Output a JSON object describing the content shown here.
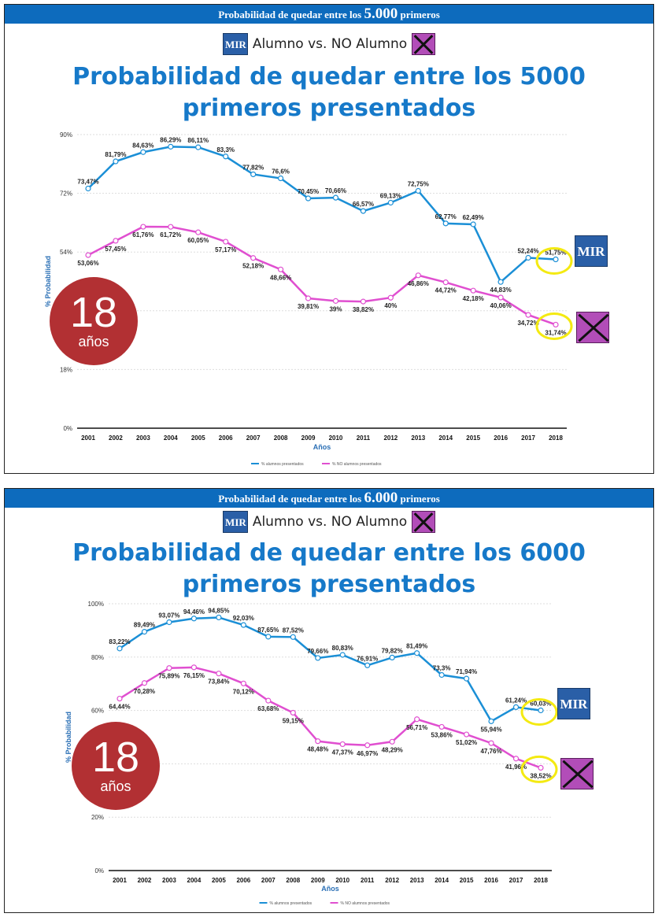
{
  "colors": {
    "banner": "#0d6bbd",
    "series_alumnos": "#1b8fd6",
    "series_no_alumnos": "#e04fd0",
    "title_blue": "#1679c9",
    "age_badge": "#b23033",
    "highlight": "#f4ea12"
  },
  "panels": [
    {
      "banner_prefix": "Probabilidad de quedar entre los",
      "banner_number": "5.000",
      "banner_suffix": "primeros",
      "subtitle": "Alumno vs. NO Alumno",
      "logo_text": "MIR",
      "title_line1": "Probabilidad de quedar entre los 5000",
      "title_line2": "primeros presentados",
      "age_number": "18",
      "age_unit": "años",
      "chart_data": {
        "type": "line",
        "categories": [
          "2001",
          "2002",
          "2003",
          "2004",
          "2005",
          "2006",
          "2007",
          "2008",
          "2009",
          "2010",
          "2011",
          "2012",
          "2013",
          "2014",
          "2015",
          "2016",
          "2017",
          "2018"
        ],
        "series": [
          {
            "name": "% alumnos presentados",
            "values": [
              73.47,
              81.79,
              84.63,
              86.29,
              86.11,
              83.3,
              77.82,
              76.6,
              70.45,
              70.66,
              66.57,
              69.13,
              72.75,
              62.77,
              62.49,
              44.83,
              52.24,
              51.75
            ],
            "labels": [
              "73,47%",
              "81,79%",
              "84,63%",
              "86,29%",
              "86,11%",
              "83,3%",
              "77,82%",
              "76,6%",
              "70,45%",
              "70,66%",
              "66,57%",
              "69,13%",
              "72,75%",
              "62,77%",
              "62,49%",
              "44,83%",
              "52,24%",
              "51,75%"
            ]
          },
          {
            "name": "% NO alumnos presentados",
            "values": [
              53.06,
              57.45,
              61.76,
              61.72,
              60.05,
              57.17,
              52.18,
              48.66,
              39.81,
              39,
              38.82,
              40,
              46.86,
              44.72,
              42.18,
              40.06,
              34.72,
              31.74
            ],
            "labels": [
              "53,06%",
              "57,45%",
              "61,76%",
              "61,72%",
              "60,05%",
              "57,17%",
              "52,18%",
              "48,66%",
              "39,81%",
              "39%",
              "38,82%",
              "40%",
              "46,86%",
              "44,72%",
              "42,18%",
              "40,06%",
              "34,72%",
              "31,74%"
            ]
          }
        ],
        "xlabel": "Años",
        "ylabel": "% Probabilidad",
        "ylim": [
          0,
          90
        ],
        "yticks": [
          "0%",
          "18%",
          "36%",
          "54%",
          "72%",
          "90%"
        ],
        "ytick_values": [
          0,
          18,
          36,
          54,
          72,
          90
        ],
        "grid": true,
        "legend": "bottom"
      }
    },
    {
      "banner_prefix": "Probabilidad de quedar entre los",
      "banner_number": "6.000",
      "banner_suffix": "primeros",
      "subtitle": "Alumno vs. NO Alumno",
      "logo_text": "MIR",
      "title_line1": "Probabilidad de quedar entre los 6000",
      "title_line2": "primeros presentados",
      "age_number": "18",
      "age_unit": "años",
      "chart_data": {
        "type": "line",
        "categories": [
          "2001",
          "2002",
          "2003",
          "2004",
          "2005",
          "2006",
          "2007",
          "2008",
          "2009",
          "2010",
          "2011",
          "2012",
          "2013",
          "2014",
          "2015",
          "2016",
          "2017",
          "2018"
        ],
        "series": [
          {
            "name": "% alumnos presentados",
            "values": [
              83.22,
              89.49,
              93.07,
              94.46,
              94.85,
              92.03,
              87.65,
              87.52,
              79.66,
              80.83,
              76.91,
              79.82,
              81.49,
              73.3,
              71.94,
              55.94,
              61.24,
              60.03
            ],
            "labels": [
              "83,22%",
              "89,49%",
              "93,07%",
              "94,46%",
              "94,85%",
              "92,03%",
              "87,65%",
              "87,52%",
              "79,66%",
              "80,83%",
              "76,91%",
              "79,82%",
              "81,49%",
              "73,3%",
              "71,94%",
              "55,94%",
              "61,24%",
              "60,03%"
            ]
          },
          {
            "name": "% NO alumnos presentados",
            "values": [
              64.44,
              70.28,
              75.89,
              76.15,
              73.84,
              70.12,
              63.68,
              59.15,
              48.48,
              47.37,
              46.97,
              48.29,
              56.71,
              53.86,
              51.02,
              47.76,
              41.96,
              38.52
            ],
            "labels": [
              "64,44%",
              "70,28%",
              "75,89%",
              "76,15%",
              "73,84%",
              "70,12%",
              "63,68%",
              "59,15%",
              "48,48%",
              "47,37%",
              "46,97%",
              "48,29%",
              "56,71%",
              "53,86%",
              "51,02%",
              "47,76%",
              "41,96%",
              "38,52%"
            ]
          }
        ],
        "xlabel": "Años",
        "ylabel": "% Probabilidad",
        "ylim": [
          0,
          100
        ],
        "yticks": [
          "0%",
          "20%",
          "40%",
          "60%",
          "80%",
          "100%"
        ],
        "ytick_values": [
          0,
          20,
          40,
          60,
          80,
          100
        ],
        "grid": true,
        "legend": "bottom"
      }
    }
  ]
}
